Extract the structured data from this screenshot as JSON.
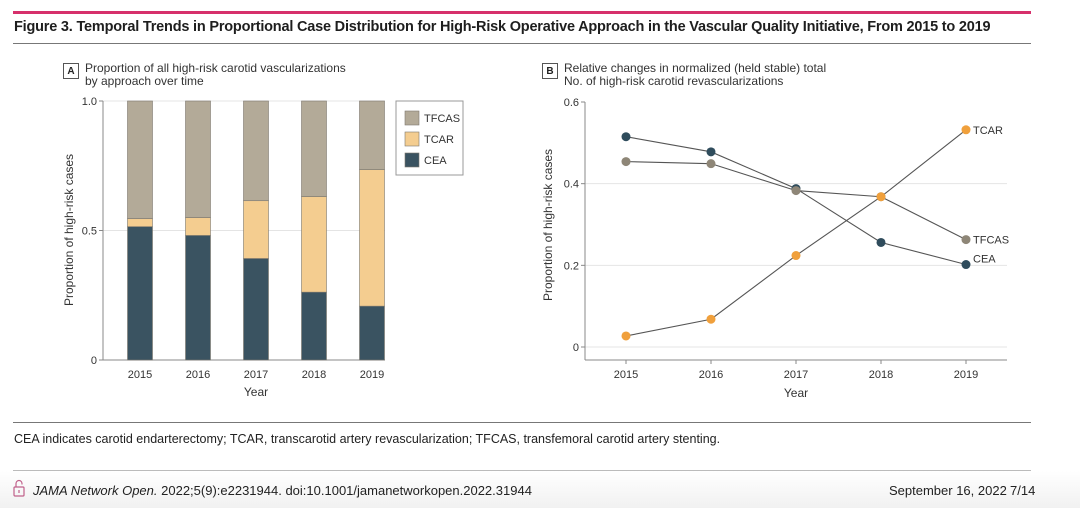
{
  "figure": {
    "title": "Figure 3. Temporal Trends in Proportional Case Distribution for High-Risk Operative Approach in the Vascular Quality Initiative, From 2015 to 2019",
    "accent_color": "#d6306b"
  },
  "panel_a": {
    "letter": "A",
    "subtitle_line1": "Proportion of all high-risk carotid vascularizations",
    "subtitle_line2": "by approach over time"
  },
  "panel_b": {
    "letter": "B",
    "subtitle_line1": "Relative changes in normalized (held stable) total",
    "subtitle_line2": "No. of high-risk carotid revascularizations"
  },
  "chart_data": [
    {
      "type": "bar",
      "stacked": true,
      "title": "Proportion of all high-risk carotid vascularizations by approach over time",
      "xlabel": "Year",
      "ylabel": "Proportion of high-risk cases",
      "categories": [
        "2015",
        "2016",
        "2017",
        "2018",
        "2019"
      ],
      "ylim": [
        0,
        1.0
      ],
      "yticks": [
        0,
        0.5,
        1.0
      ],
      "ytick_labels": [
        "0",
        "0.5",
        "1.0"
      ],
      "grid": true,
      "legend": "top-right",
      "series": [
        {
          "name": "CEA",
          "color": "#3a5361",
          "values": [
            0.515,
            0.481,
            0.392,
            0.262,
            0.208
          ]
        },
        {
          "name": "TCAR",
          "color": "#f4cd90",
          "values": [
            0.031,
            0.069,
            0.223,
            0.369,
            0.527
          ]
        },
        {
          "name": "TFCAS",
          "color": "#b3aa98",
          "values": [
            0.454,
            0.45,
            0.385,
            0.369,
            0.265
          ]
        }
      ],
      "legend_order": [
        "TFCAS",
        "TCAR",
        "CEA"
      ]
    },
    {
      "type": "line",
      "title": "Relative changes in normalized (held stable) total No. of high-risk carotid revascularizations",
      "xlabel": "Year",
      "ylabel": "Proportion of high-risk cases",
      "x": [
        "2015",
        "2016",
        "2017",
        "2018",
        "2019"
      ],
      "ylim": [
        0,
        0.6
      ],
      "yticks": [
        0,
        0.2,
        0.4,
        0.6
      ],
      "ytick_labels": [
        "0",
        "0.2",
        "0.4",
        "0.6"
      ],
      "grid": true,
      "legend": "direct labels at right end of lines",
      "series": [
        {
          "name": "CEA",
          "color": "#2f4c5c",
          "values": [
            0.515,
            0.478,
            0.388,
            0.256,
            0.202
          ]
        },
        {
          "name": "TFCAS",
          "color": "#8e8677",
          "values": [
            0.454,
            0.449,
            0.383,
            0.368,
            0.263
          ]
        },
        {
          "name": "TCAR",
          "color": "#f0a03c",
          "values": [
            0.027,
            0.068,
            0.224,
            0.368,
            0.532
          ]
        }
      ]
    }
  ],
  "caption": "CEA indicates carotid endarterectomy; TCAR, transcarotid artery revascularization; TFCAS, transfemoral carotid artery stenting.",
  "footer": {
    "lock_icon": "open-access-lock-icon",
    "journal": "JAMA Network Open.",
    "citation": " 2022;5(9):e2231944. doi:10.1001/jamanetworkopen.2022.31944",
    "date": "September 16, 2022",
    "page": "7/14"
  }
}
